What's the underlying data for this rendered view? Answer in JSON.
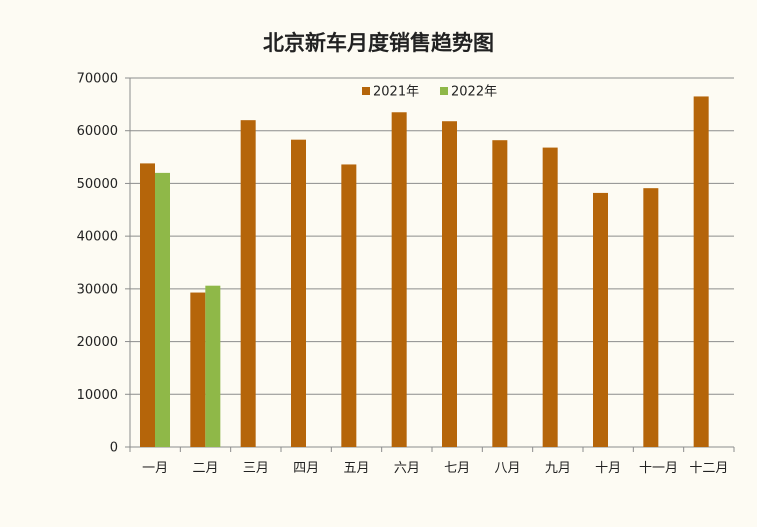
{
  "chart_data": {
    "type": "bar",
    "title": "北京新车月度销售趋势图",
    "xlabel": "",
    "ylabel": "",
    "categories": [
      "一月",
      "二月",
      "三月",
      "四月",
      "五月",
      "六月",
      "七月",
      "八月",
      "九月",
      "十月",
      "十一月",
      "十二月"
    ],
    "series": [
      {
        "name": "2021年",
        "color": "#b5650a",
        "values": [
          53800,
          29300,
          62000,
          58300,
          53600,
          63500,
          61800,
          58200,
          56800,
          48200,
          49100,
          66500
        ]
      },
      {
        "name": "2022年",
        "color": "#8fb848",
        "values": [
          52000,
          30600,
          null,
          null,
          null,
          null,
          null,
          null,
          null,
          null,
          null,
          null
        ]
      }
    ],
    "ylim": [
      0,
      70000
    ],
    "yticks": [
      0,
      10000,
      20000,
      30000,
      40000,
      50000,
      60000,
      70000
    ],
    "grid": true,
    "legend_position": "top-center"
  }
}
